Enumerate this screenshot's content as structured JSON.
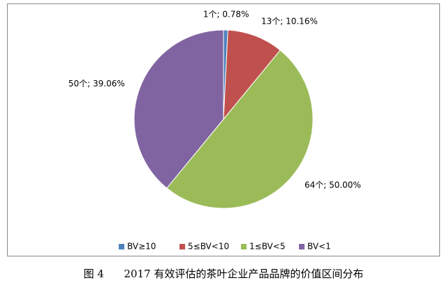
{
  "chart_data": {
    "type": "pie",
    "categories": [
      "BV≥10",
      "5≤BV<10",
      "1≤BV<5",
      "BV<1"
    ],
    "values": [
      1,
      13,
      64,
      50
    ],
    "value_labels": [
      "1个; 0.78%",
      "13个; 10.16%",
      "64个; 50.00%",
      "50个; 39.06%"
    ],
    "colors": [
      "#4f81bd",
      "#c0504d",
      "#9bbb59",
      "#8064a2"
    ],
    "legend": "bottom"
  },
  "caption": "图 4      2017 有效评估的茶叶企业产品品牌的价值区间分布"
}
